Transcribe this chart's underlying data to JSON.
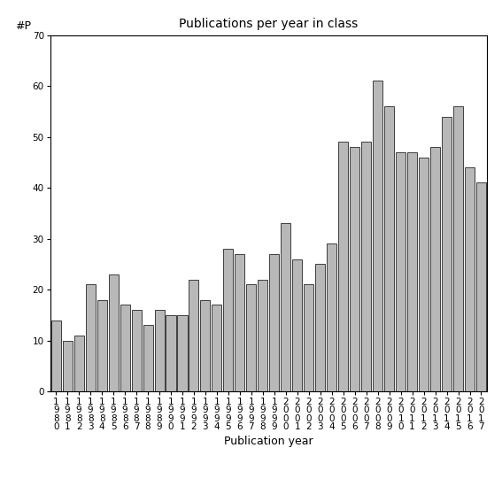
{
  "title": "Publications per year in class",
  "xlabel": "Publication year",
  "ylabel": "#P",
  "years": [
    1980,
    1981,
    1982,
    1983,
    1984,
    1985,
    1986,
    1987,
    1988,
    1989,
    1990,
    1991,
    1992,
    1993,
    1994,
    1995,
    1996,
    1997,
    1998,
    1999,
    2000,
    2001,
    2002,
    2003,
    2004,
    2005,
    2006,
    2007,
    2008,
    2009,
    2010,
    2011,
    2012,
    2013,
    2014,
    2015,
    2016,
    2017
  ],
  "values": [
    14,
    10,
    11,
    21,
    18,
    23,
    17,
    16,
    13,
    16,
    15,
    15,
    22,
    18,
    17,
    28,
    27,
    21,
    22,
    27,
    33,
    26,
    21,
    25,
    29,
    49,
    48,
    49,
    61,
    56,
    47,
    47,
    46,
    48,
    54,
    56,
    44,
    41
  ],
  "bar_color": "#b8b8b8",
  "bar_edge_color": "#000000",
  "bar_edge_width": 0.5,
  "ylim": [
    0,
    70
  ],
  "yticks": [
    0,
    10,
    20,
    30,
    40,
    50,
    60,
    70
  ],
  "background_color": "#ffffff",
  "title_fontsize": 10,
  "label_fontsize": 9,
  "tick_fontsize": 7.5
}
